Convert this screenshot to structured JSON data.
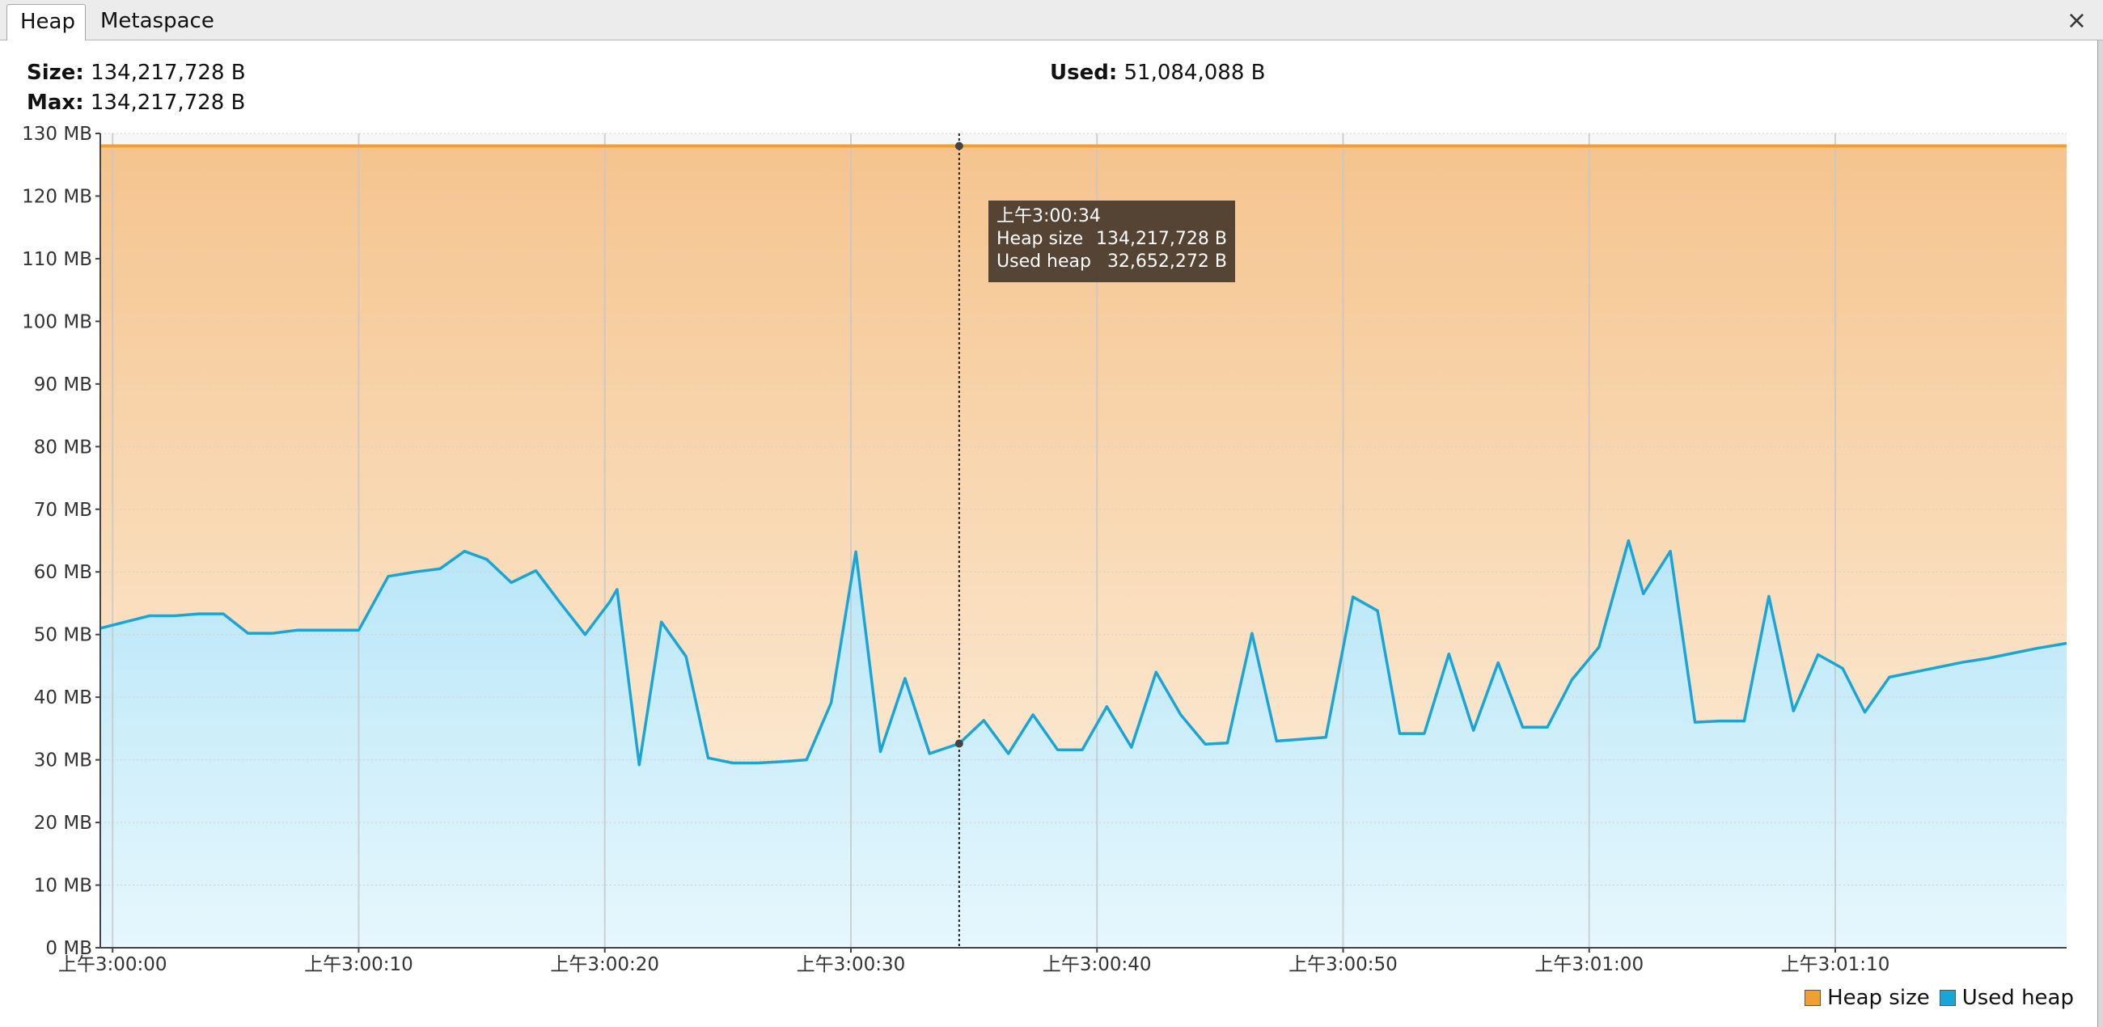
{
  "tabs": [
    {
      "label": "Heap",
      "active": true
    },
    {
      "label": "Metaspace",
      "active": false
    }
  ],
  "close_label": "×",
  "stats": {
    "size_label": "Size:",
    "size_value": "134,217,728 B",
    "max_label": "Max:",
    "max_value": "134,217,728 B",
    "used_label": "Used:",
    "used_value": "51,084,088 B"
  },
  "tooltip": {
    "time": "上午3:00:34",
    "heap_label": "Heap size",
    "heap_value": "134,217,728 B",
    "used_label": "Used heap",
    "used_value": "32,652,272 B"
  },
  "legend": {
    "heap_label": "Heap size",
    "used_label": "Used heap"
  },
  "chart_data": {
    "type": "area",
    "title": "",
    "xlabel": "",
    "ylabel": "",
    "x_unit": "seconds",
    "xlim": [
      0,
      79.4
    ],
    "ylim": [
      0,
      130
    ],
    "grid": true,
    "legend_position": "bottom-right",
    "y_ticks": [
      {
        "value": 0,
        "label": "0 MB"
      },
      {
        "value": 10,
        "label": "10 MB"
      },
      {
        "value": 20,
        "label": "20 MB"
      },
      {
        "value": 30,
        "label": "30 MB"
      },
      {
        "value": 40,
        "label": "40 MB"
      },
      {
        "value": 50,
        "label": "50 MB"
      },
      {
        "value": 60,
        "label": "60 MB"
      },
      {
        "value": 70,
        "label": "70 MB"
      },
      {
        "value": 80,
        "label": "80 MB"
      },
      {
        "value": 90,
        "label": "90 MB"
      },
      {
        "value": 100,
        "label": "100 MB"
      },
      {
        "value": 110,
        "label": "110 MB"
      },
      {
        "value": 120,
        "label": "120 MB"
      },
      {
        "value": 130,
        "label": "130 MB"
      }
    ],
    "x_ticks": [
      {
        "value": 0,
        "label": "上午3:00:00"
      },
      {
        "value": 10,
        "label": "上午3:00:10"
      },
      {
        "value": 20,
        "label": "上午3:00:20"
      },
      {
        "value": 30,
        "label": "上午3:00:30"
      },
      {
        "value": 40,
        "label": "上午3:00:40"
      },
      {
        "value": 50,
        "label": "上午3:00:50"
      },
      {
        "value": 60,
        "label": "上午3:01:00"
      },
      {
        "value": 70,
        "label": "上午3:01:10"
      }
    ],
    "crosshair_x": 34.4,
    "series": [
      {
        "name": "Heap size",
        "color": "#f0a030",
        "fill_top": "#f5c48e",
        "fill_bottom": "#fdf1e1",
        "x": [
          -0.5,
          79.4
        ],
        "y": [
          128,
          128
        ]
      },
      {
        "name": "Used heap",
        "color": "#1aa5d8",
        "fill_top": "#b8e6f8",
        "fill_bottom": "#e6f7fd",
        "x": [
          -0.5,
          0.5,
          1.5,
          2.5,
          3.5,
          4.5,
          5.5,
          6.5,
          7.5,
          8.5,
          9.5,
          10,
          11.2,
          12.3,
          13.3,
          14.3,
          15.2,
          16.2,
          17.2,
          18.2,
          19.2,
          20.2,
          20.5,
          21.4,
          22.3,
          23.3,
          24.2,
          25.2,
          26.2,
          27.2,
          28.2,
          29.2,
          30.2,
          31.2,
          32.2,
          33.2,
          34.4,
          35.4,
          36.4,
          37.4,
          38.4,
          39.4,
          40.4,
          41.4,
          42.4,
          43.4,
          44.4,
          45.3,
          46.3,
          47.3,
          48.3,
          49.3,
          50.4,
          51.4,
          52.3,
          53.3,
          54.3,
          55.3,
          56.3,
          57.3,
          58.3,
          59.3,
          60.4,
          61.6,
          62.2,
          63.3,
          64.3,
          65.3,
          66.3,
          67.3,
          68.3,
          69.3,
          70.3,
          71.2,
          72.2,
          73.2,
          74.2,
          75.2,
          76.2,
          77.2,
          78.2,
          79.4
        ],
        "y": [
          51,
          52,
          53,
          53,
          53.3,
          53.3,
          50.2,
          50.2,
          50.7,
          50.7,
          50.7,
          50.7,
          59.3,
          60,
          60.5,
          63.3,
          62,
          58.3,
          60.2,
          55,
          50,
          55.2,
          57.2,
          29.2,
          52,
          46.5,
          30.3,
          29.5,
          29.5,
          29.7,
          30,
          39.1,
          63.2,
          31.3,
          43,
          31,
          32.6,
          36.3,
          31,
          37.2,
          31.6,
          31.6,
          38.5,
          32,
          44,
          37.2,
          32.5,
          32.7,
          50.2,
          33,
          33.3,
          33.6,
          56,
          53.8,
          34.2,
          34.2,
          46.9,
          34.7,
          45.5,
          35.2,
          35.2,
          42.8,
          48,
          65,
          56.5,
          63.3,
          36,
          36.2,
          36.2,
          56.1,
          37.8,
          46.8,
          44.6,
          37.6,
          43.2,
          44,
          44.8,
          45.6,
          46.2,
          47,
          47.8,
          48.6
        ]
      }
    ]
  }
}
